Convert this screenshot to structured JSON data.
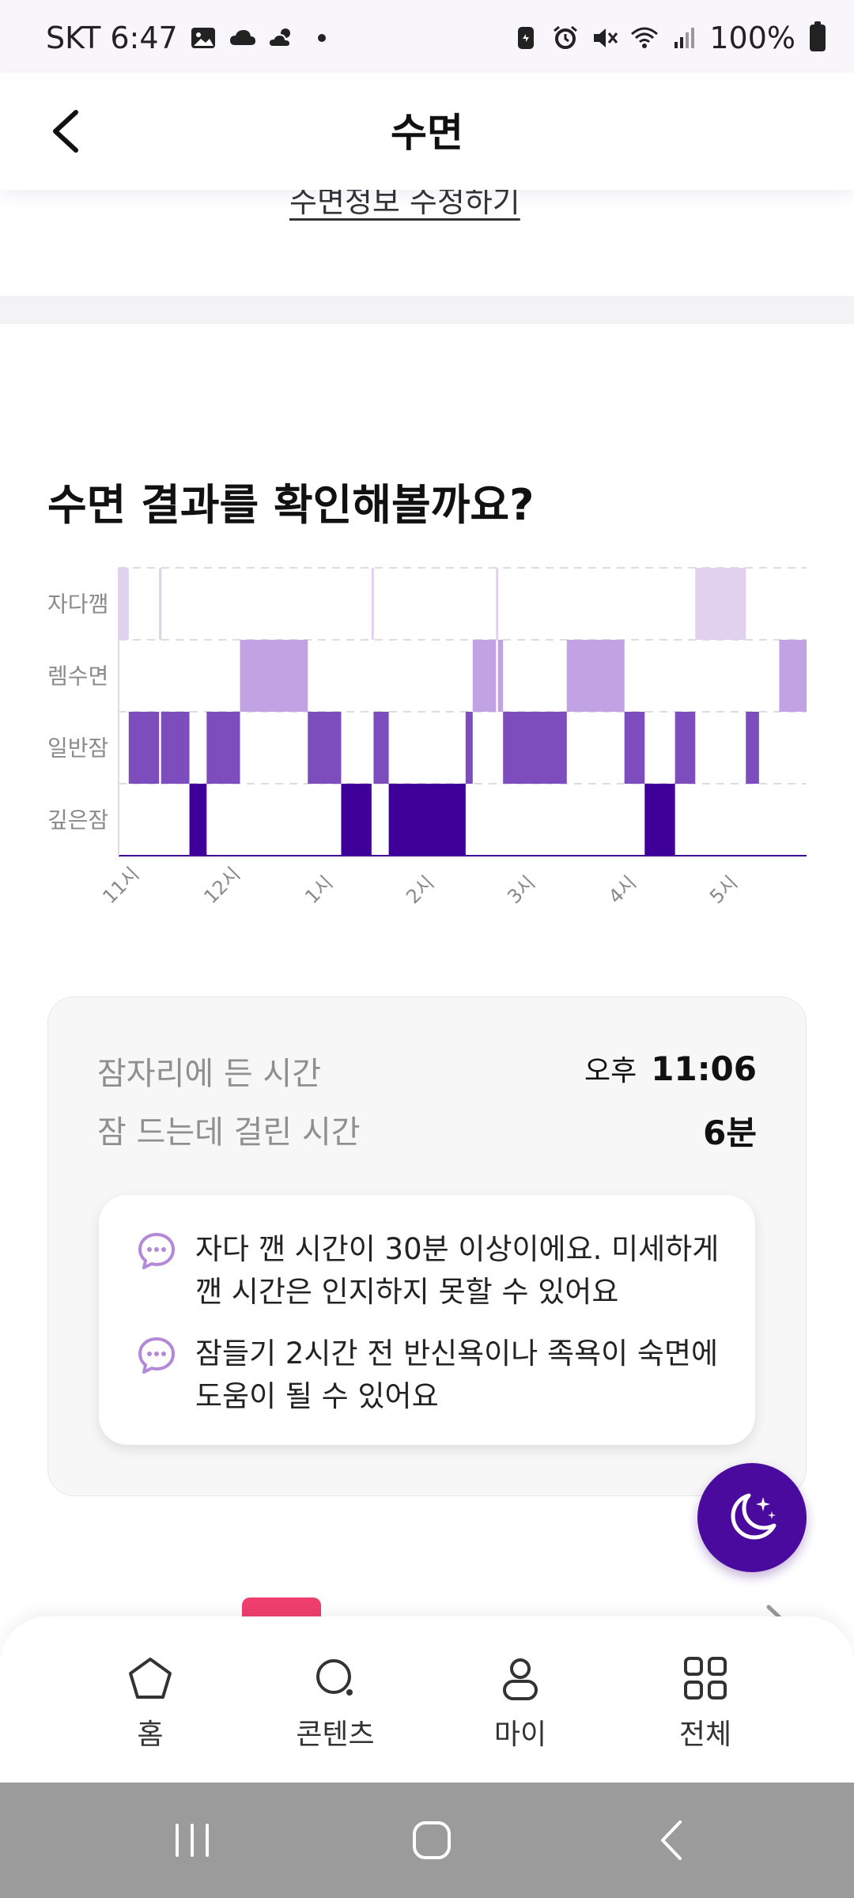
{
  "status_bar": {
    "carrier_time": "SKT 6:47",
    "battery": "100%"
  },
  "header": {
    "title": "수면",
    "back_icon": "chevron-left-icon"
  },
  "edit_link": "수면정보 수정하기",
  "sleep_result": {
    "title": "수면 결과를 확인해볼까요?"
  },
  "chart_data": {
    "type": "hypnogram",
    "y_categories": [
      "자다깸",
      "렘수면",
      "일반잠",
      "깊은잠"
    ],
    "x_ticks": [
      "11시",
      "12시",
      "1시",
      "2시",
      "3시",
      "4시",
      "5시"
    ],
    "x_range_hours": [
      23.0,
      29.8
    ],
    "colors": {
      "자다깸": "#e1d1ee",
      "렘수면": "#c1a2e3",
      "일반잠": "#7d4dbd",
      "깊은잠": "#3e0098"
    },
    "segments": [
      {
        "stage": "자다깸",
        "start": 23.0,
        "end": 23.1
      },
      {
        "stage": "일반잠",
        "start": 23.1,
        "end": 23.4
      },
      {
        "stage": "자다깸",
        "start": 23.4,
        "end": 23.42
      },
      {
        "stage": "일반잠",
        "start": 23.42,
        "end": 23.7
      },
      {
        "stage": "깊은잠",
        "start": 23.7,
        "end": 23.87
      },
      {
        "stage": "일반잠",
        "start": 23.87,
        "end": 24.2
      },
      {
        "stage": "렘수면",
        "start": 24.2,
        "end": 24.87
      },
      {
        "stage": "일반잠",
        "start": 24.87,
        "end": 25.2
      },
      {
        "stage": "깊은잠",
        "start": 25.2,
        "end": 25.5
      },
      {
        "stage": "자다깸",
        "start": 25.5,
        "end": 25.52
      },
      {
        "stage": "일반잠",
        "start": 25.52,
        "end": 25.67
      },
      {
        "stage": "깊은잠",
        "start": 25.67,
        "end": 26.43
      },
      {
        "stage": "일반잠",
        "start": 26.43,
        "end": 26.5
      },
      {
        "stage": "렘수면",
        "start": 26.5,
        "end": 26.73
      },
      {
        "stage": "자다깸",
        "start": 26.73,
        "end": 26.75
      },
      {
        "stage": "렘수면",
        "start": 26.75,
        "end": 26.8
      },
      {
        "stage": "일반잠",
        "start": 26.8,
        "end": 27.43
      },
      {
        "stage": "렘수면",
        "start": 27.43,
        "end": 28.0
      },
      {
        "stage": "일반잠",
        "start": 28.0,
        "end": 28.2
      },
      {
        "stage": "깊은잠",
        "start": 28.2,
        "end": 28.5
      },
      {
        "stage": "일반잠",
        "start": 28.5,
        "end": 28.7
      },
      {
        "stage": "자다깸",
        "start": 28.7,
        "end": 29.2
      },
      {
        "stage": "일반잠",
        "start": 29.2,
        "end": 29.33
      },
      {
        "stage": "렘수면",
        "start": 29.53,
        "end": 29.8
      }
    ]
  },
  "summary": {
    "bedtime_label": "잠자리에 든 시간",
    "bedtime_ampm": "오후",
    "bedtime_value": "11:06",
    "latency_label": "잠 드는데 걸린 시간",
    "latency_value": "6분"
  },
  "tips": [
    {
      "line1": "자다 깬 시간이 30분 이상이에요. 미세하게",
      "line2": "깬 시간은 인지하지 못할 수 있어요"
    },
    {
      "line1": "잠들기 2시간 전 반신욕이나 족욕이 숙면에",
      "line2": "도움이 될 수 있어요"
    }
  ],
  "fab": {
    "icon": "moon-stars-icon"
  },
  "bottom_nav": [
    {
      "label": "홈",
      "icon": "home-icon"
    },
    {
      "label": "콘텐츠",
      "icon": "search-icon"
    },
    {
      "label": "마이",
      "icon": "person-icon"
    },
    {
      "label": "전체",
      "icon": "grid-icon"
    }
  ],
  "colors": {
    "brand_purple": "#4a0a9e",
    "tip_icon": "#b48ad8"
  }
}
